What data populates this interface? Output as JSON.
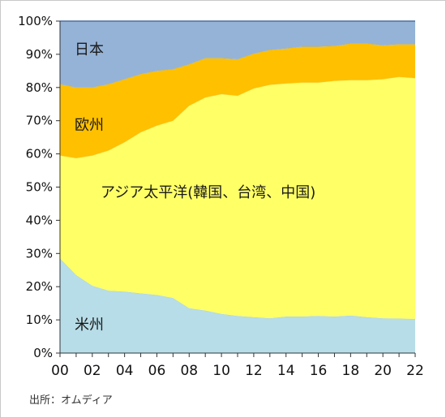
{
  "chart_data": {
    "type": "area",
    "stacked": true,
    "normalized": true,
    "x": [
      "00",
      "01",
      "02",
      "03",
      "04",
      "05",
      "06",
      "07",
      "08",
      "09",
      "10",
      "11",
      "12",
      "13",
      "14",
      "15",
      "16",
      "17",
      "18",
      "19",
      "20",
      "21",
      "22"
    ],
    "series": [
      {
        "name": "米州",
        "color": "#b7dde8",
        "values": [
          28.5,
          23.5,
          20.3,
          18.8,
          18.5,
          18.0,
          17.5,
          16.6,
          13.5,
          12.8,
          11.8,
          11.2,
          10.8,
          10.5,
          11.0,
          11.0,
          11.2,
          11.0,
          11.3,
          10.8,
          10.5,
          10.4,
          10.3
        ]
      },
      {
        "name": "アジア太平洋(韓国、台湾、中国)",
        "color": "#ffff66",
        "values": [
          31.0,
          35.2,
          39.2,
          42.2,
          45.0,
          48.5,
          51.0,
          53.4,
          61.0,
          64.2,
          66.2,
          66.3,
          68.9,
          70.3,
          70.2,
          70.5,
          70.3,
          71.0,
          70.9,
          71.4,
          72.0,
          72.8,
          72.5
        ]
      },
      {
        "name": "欧州",
        "color": "#ffc000",
        "values": [
          21.5,
          21.3,
          20.5,
          20.0,
          19.0,
          17.5,
          16.5,
          15.5,
          12.5,
          11.8,
          10.8,
          11.0,
          10.5,
          10.5,
          10.5,
          10.8,
          10.8,
          10.5,
          11.0,
          11.0,
          10.2,
          9.8,
          10.2
        ]
      },
      {
        "name": "日本",
        "color": "#95b3d7",
        "values": [
          19.0,
          20.0,
          20.0,
          19.0,
          17.5,
          16.0,
          15.0,
          14.5,
          13.0,
          11.2,
          11.2,
          11.5,
          9.8,
          8.7,
          8.3,
          7.7,
          7.7,
          7.5,
          6.8,
          6.8,
          7.3,
          7.0,
          7.0
        ]
      }
    ],
    "y_ticks": [
      "0%",
      "10%",
      "20%",
      "30%",
      "40%",
      "50%",
      "60%",
      "70%",
      "80%",
      "90%",
      "100%"
    ],
    "x_ticks": [
      "00",
      "02",
      "04",
      "06",
      "08",
      "10",
      "12",
      "14",
      "16",
      "18",
      "20",
      "22"
    ],
    "ylim": [
      0,
      100
    ],
    "grid": false,
    "legend": "none",
    "labels": {
      "japan": "日本",
      "europe": "欧州",
      "asia": "アジア太平洋(韓国、台湾、中国)",
      "americas": "米州"
    }
  },
  "source": "出所：オムディア"
}
